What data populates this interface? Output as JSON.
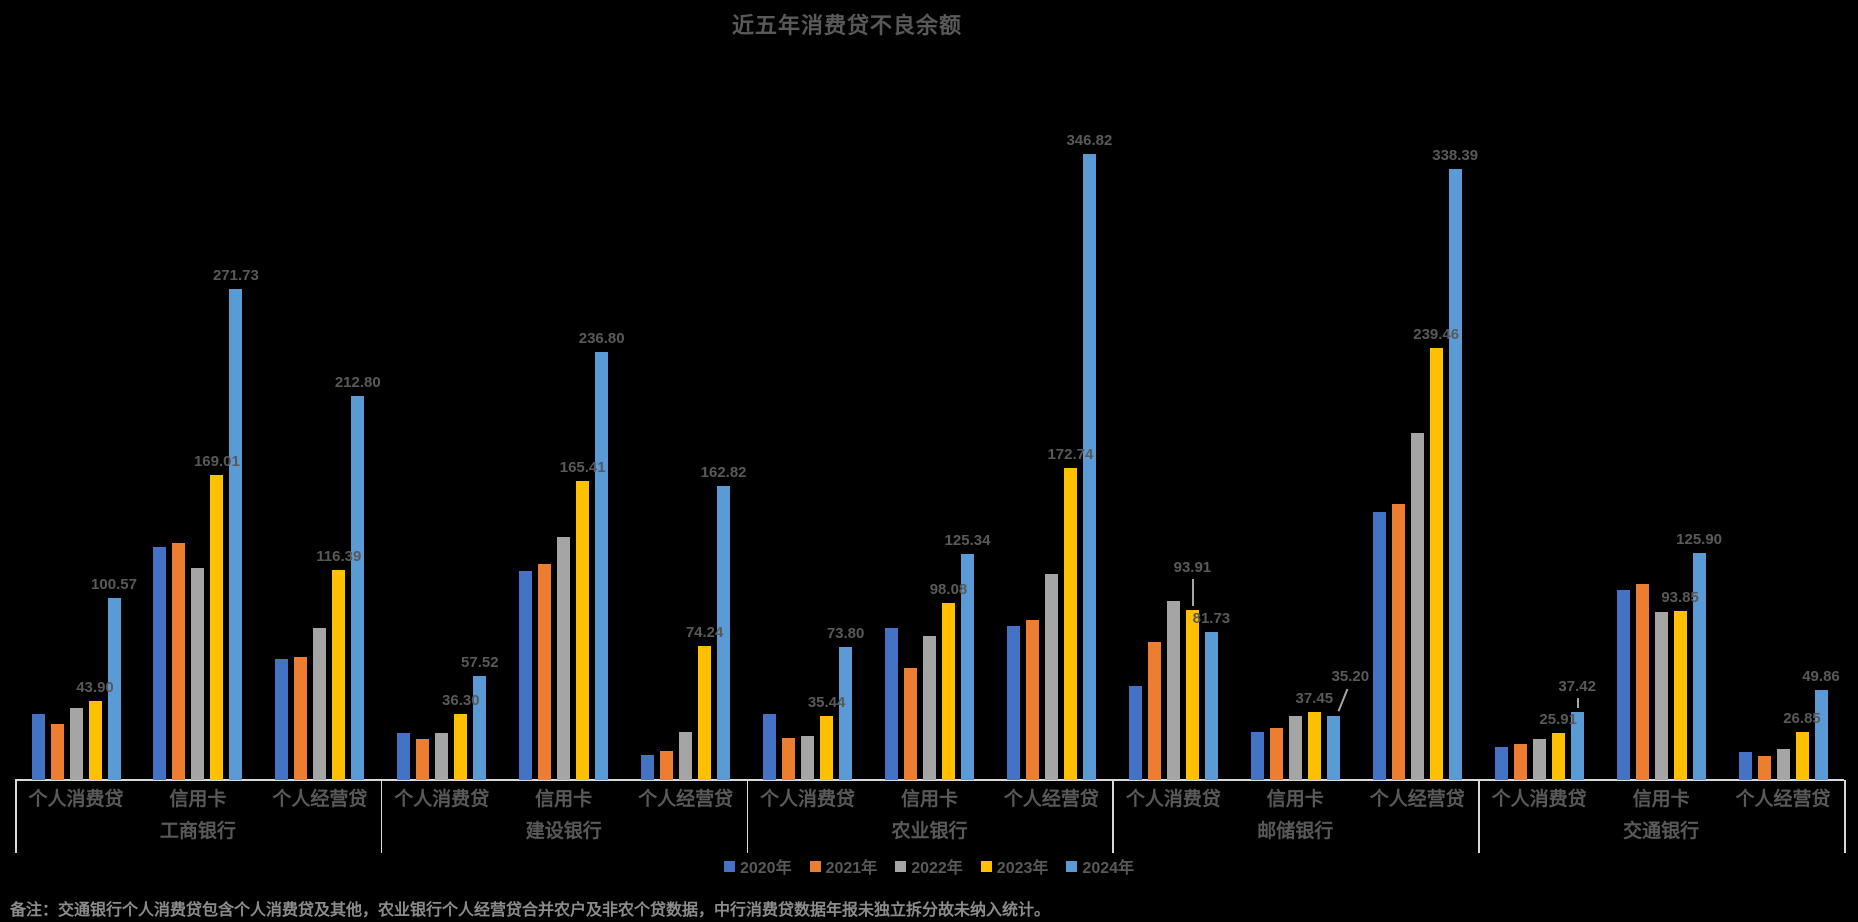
{
  "title": "近五年消费贷不良余额",
  "note": "备注：交通银行个人消费贷包含个人消费贷及其他，农业银行个人经营贷合并农户及非农个贷数据，中行消费贷数据年报未独立拆分故未纳入统计。",
  "colors": {
    "background": "#000000",
    "text": "#595959",
    "note_text": "#8C8C8C",
    "axis_line": "#D9D9D9"
  },
  "chart_data": {
    "type": "bar",
    "title": "近五年消费贷不良余额",
    "legend_position": "bottom-center",
    "value_axis_visible": false,
    "grid": false,
    "ylim": [
      0,
      360
    ],
    "series_names": [
      "2020年",
      "2021年",
      "2022年",
      "2023年",
      "2024年"
    ],
    "series_colors": [
      "#4472C4",
      "#ED7D31",
      "#A5A5A5",
      "#FFC000",
      "#5B9BD5"
    ],
    "banks": [
      {
        "name": "工商银行",
        "categories": [
          {
            "name": "个人消费贷",
            "values": [
              36.5,
              31.0,
              40.0,
              43.9,
              100.57
            ],
            "labels": [
              {
                "series": 3,
                "text": "43.90"
              },
              {
                "series": 4,
                "text": "100.57"
              }
            ]
          },
          {
            "name": "信用卡",
            "values": [
              128.8,
              131.5,
              117.3,
              169.01,
              271.73
            ],
            "labels": [
              {
                "series": 3,
                "text": "169.01"
              },
              {
                "series": 4,
                "text": "271.73"
              }
            ]
          },
          {
            "name": "个人经营贷",
            "values": [
              67.3,
              68.2,
              84.3,
              116.39,
              212.8
            ],
            "labels": [
              {
                "series": 3,
                "text": "116.39"
              },
              {
                "series": 4,
                "text": "212.80"
              }
            ]
          }
        ]
      },
      {
        "name": "建设银行",
        "categories": [
          {
            "name": "个人消费贷",
            "values": [
              26.2,
              22.5,
              26.2,
              36.3,
              57.52
            ],
            "labels": [
              {
                "series": 3,
                "text": "36.30"
              },
              {
                "series": 4,
                "text": "57.52"
              }
            ]
          },
          {
            "name": "信用卡",
            "values": [
              115.7,
              119.7,
              134.5,
              165.41,
              236.8
            ],
            "labels": [
              {
                "series": 3,
                "text": "165.41"
              },
              {
                "series": 4,
                "text": "236.80"
              }
            ]
          },
          {
            "name": "个人经营贷",
            "values": [
              14.0,
              16.0,
              26.7,
              74.24,
              162.82
            ],
            "labels": [
              {
                "series": 3,
                "text": "74.24"
              },
              {
                "series": 4,
                "text": "162.82"
              }
            ]
          }
        ]
      },
      {
        "name": "农业银行",
        "categories": [
          {
            "name": "个人消费贷",
            "values": [
              36.5,
              23.1,
              24.3,
              35.44,
              73.8
            ],
            "labels": [
              {
                "series": 3,
                "text": "35.44"
              },
              {
                "series": 4,
                "text": "73.80"
              }
            ]
          },
          {
            "name": "信用卡",
            "values": [
              84.0,
              61.8,
              79.5,
              98.08,
              125.34
            ],
            "labels": [
              {
                "series": 3,
                "text": "98.08"
              },
              {
                "series": 4,
                "text": "125.34"
              }
            ]
          },
          {
            "name": "个人经营贷",
            "values": [
              85.4,
              88.4,
              114.0,
              172.74,
              346.82
            ],
            "labels": [
              {
                "series": 3,
                "text": "172.74"
              },
              {
                "series": 4,
                "text": "346.82"
              }
            ]
          }
        ]
      },
      {
        "name": "邮储银行",
        "categories": [
          {
            "name": "个人消费贷",
            "values": [
              52.2,
              76.4,
              99.1,
              93.91,
              81.73
            ],
            "labels": [
              {
                "series": 3,
                "text": "93.91",
                "leader": "v",
                "lift": 29
              },
              {
                "series": 4,
                "text": "81.73"
              }
            ]
          },
          {
            "name": "信用卡",
            "values": [
              26.4,
              28.6,
              35.6,
              37.45,
              35.2
            ],
            "labels": [
              {
                "series": 3,
                "text": "37.45"
              },
              {
                "series": 4,
                "text": "35.20",
                "leader": "diag",
                "dx": 17,
                "lift": 26
              }
            ]
          },
          {
            "name": "个人经营贷",
            "values": [
              148.2,
              152.9,
              192.0,
              239.46,
              338.39
            ],
            "labels": [
              {
                "series": 3,
                "text": "239.46"
              },
              {
                "series": 4,
                "text": "338.39"
              }
            ]
          }
        ]
      },
      {
        "name": "交通银行",
        "categories": [
          {
            "name": "个人消费贷",
            "values": [
              18.1,
              19.9,
              22.9,
              25.91,
              37.42
            ],
            "labels": [
              {
                "series": 3,
                "text": "25.91"
              },
              {
                "series": 4,
                "text": "37.42",
                "leader": "v",
                "lift": 12
              }
            ]
          },
          {
            "name": "信用卡",
            "values": [
              105.3,
              108.5,
              93.0,
              93.85,
              125.9
            ],
            "labels": [
              {
                "series": 3,
                "text": "93.85"
              },
              {
                "series": 4,
                "text": "125.90"
              }
            ]
          },
          {
            "name": "个人经营贷",
            "values": [
              15.3,
              13.1,
              17.0,
              26.85,
              49.86
            ],
            "labels": [
              {
                "series": 3,
                "text": "26.85"
              },
              {
                "series": 4,
                "text": "49.86"
              }
            ]
          }
        ]
      }
    ]
  }
}
